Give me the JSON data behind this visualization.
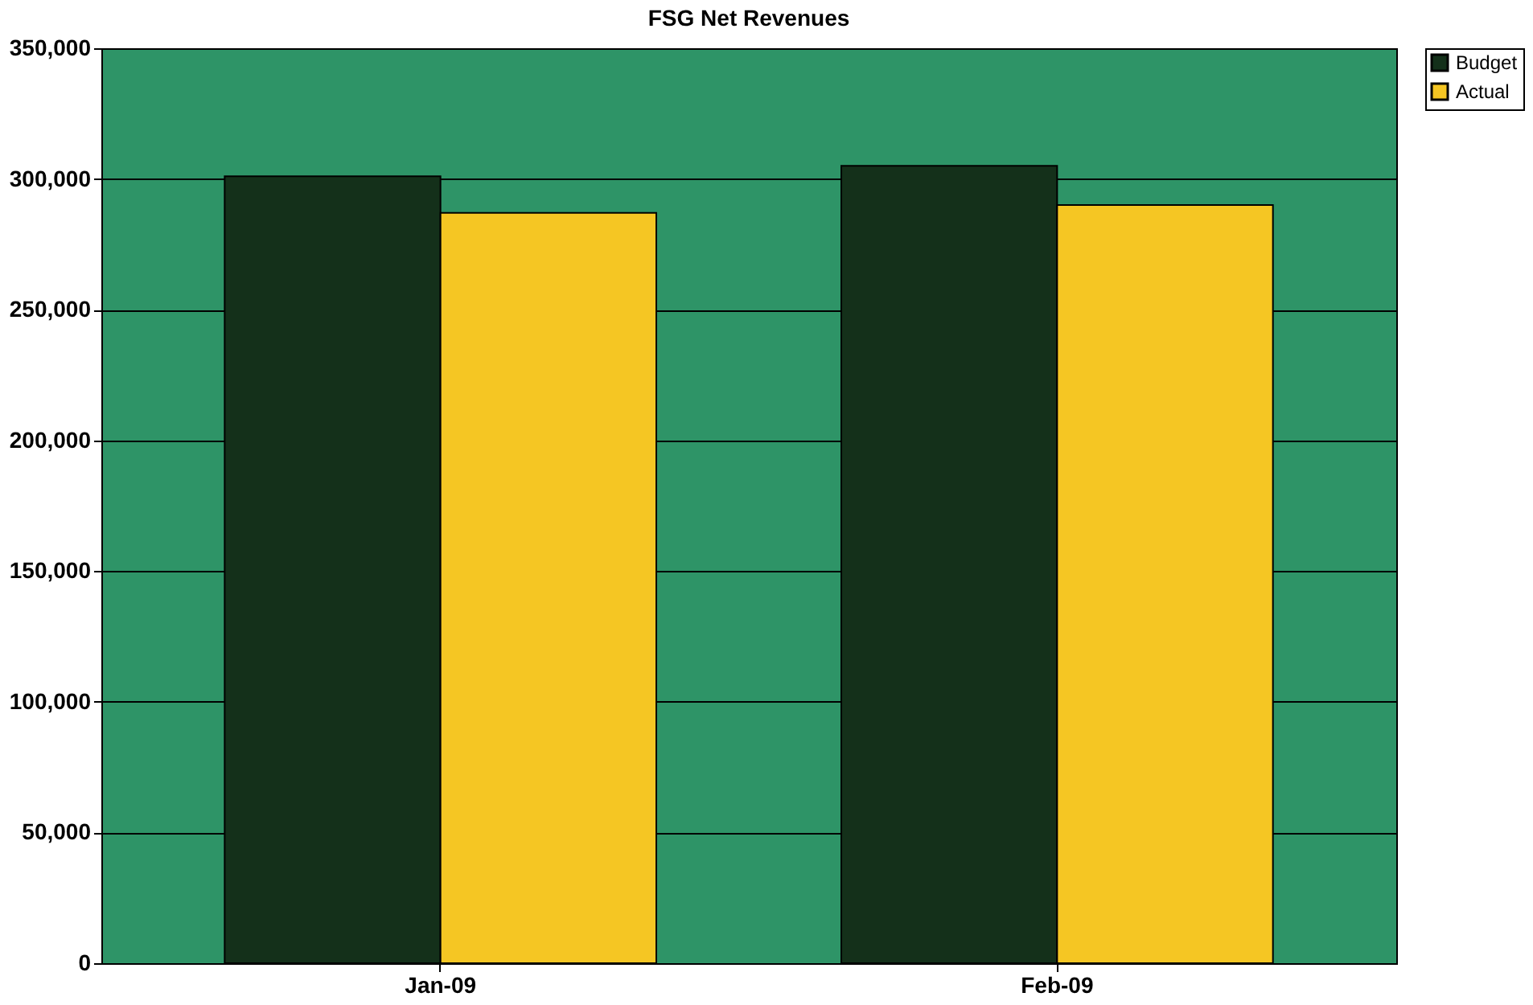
{
  "chart_data": {
    "type": "bar",
    "title": "FSG Net Revenues",
    "categories": [
      "Jan-09",
      "Feb-09"
    ],
    "series": [
      {
        "name": "Budget",
        "color": "#14301a",
        "values": [
          301000,
          305000
        ]
      },
      {
        "name": "Actual",
        "color": "#f5c623",
        "values": [
          287000,
          290000
        ]
      }
    ],
    "ylim": [
      0,
      350000
    ],
    "yticks": [
      0,
      {
        "value": 50000,
        "label": "50,000"
      },
      {
        "value": 100000,
        "label": "100,000"
      },
      {
        "value": 150000,
        "label": "150,000"
      },
      {
        "value": 200000,
        "label": "200,000"
      },
      {
        "value": 250000,
        "label": "250,000"
      },
      {
        "value": 300000,
        "label": "300,000"
      },
      {
        "value": 350000,
        "label": "350,000"
      }
    ],
    "grid": "y",
    "legend": "right"
  }
}
